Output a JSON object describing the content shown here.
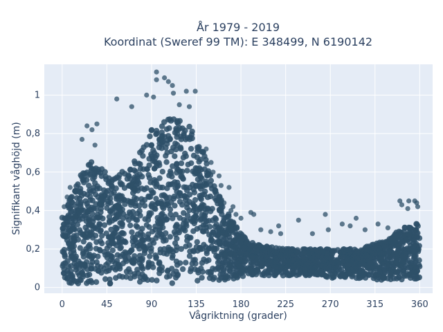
{
  "chart_data": {
    "type": "scatter",
    "title_lines": [
      "År 1979 - 2019",
      "Koordinat (Sweref 99 TM): E 348499, N 6190142"
    ],
    "xlabel": "Vågriktning (grader)",
    "ylabel": "Signifikant våghöjd (m)",
    "xlim": [
      -18,
      373
    ],
    "ylim": [
      -0.03,
      1.16
    ],
    "xticks": [
      0,
      45,
      90,
      135,
      180,
      225,
      270,
      315,
      360
    ],
    "xtick_labels": [
      "0",
      "45",
      "90",
      "135",
      "180",
      "225",
      "270",
      "315",
      "360"
    ],
    "yticks": [
      0,
      0.2,
      0.4,
      0.6,
      0.8,
      1
    ],
    "ytick_labels": [
      "0",
      "0,2",
      "0,4",
      "0,6",
      "0,8",
      "1"
    ],
    "grid": true,
    "legend": "none",
    "colors": {
      "marker": "#2e5068",
      "plot_bg": "#e5ecf6",
      "grid": "#ffffff",
      "text": "#2a3f5f"
    },
    "envelope": {
      "x": [
        0,
        10,
        20,
        30,
        40,
        50,
        60,
        70,
        80,
        90,
        100,
        110,
        120,
        130,
        140,
        150,
        160,
        170,
        180,
        190,
        200,
        210,
        220,
        230,
        240,
        250,
        260,
        270,
        280,
        290,
        300,
        310,
        320,
        330,
        340,
        350,
        360
      ],
      "lower": [
        0.03,
        0.02,
        0.02,
        0.02,
        0.02,
        0.02,
        0.02,
        0.02,
        0.02,
        0.02,
        0.02,
        0.02,
        0.02,
        0.02,
        0.02,
        0.02,
        0.03,
        0.04,
        0.05,
        0.06,
        0.06,
        0.06,
        0.06,
        0.06,
        0.06,
        0.06,
        0.06,
        0.05,
        0.05,
        0.05,
        0.04,
        0.04,
        0.04,
        0.04,
        0.04,
        0.04,
        0.04
      ],
      "upper": [
        0.38,
        0.48,
        0.6,
        0.66,
        0.62,
        0.56,
        0.6,
        0.64,
        0.72,
        0.82,
        0.86,
        0.9,
        0.88,
        0.84,
        0.74,
        0.6,
        0.46,
        0.36,
        0.28,
        0.24,
        0.22,
        0.21,
        0.21,
        0.2,
        0.2,
        0.2,
        0.2,
        0.2,
        0.2,
        0.2,
        0.2,
        0.22,
        0.24,
        0.26,
        0.3,
        0.33,
        0.35
      ]
    },
    "outliers": [
      [
        95,
        1.12
      ],
      [
        103,
        1.09
      ],
      [
        95,
        1.08
      ],
      [
        107,
        1.07
      ],
      [
        111,
        1.05
      ],
      [
        125,
        1.02
      ],
      [
        134,
        1.02
      ],
      [
        112,
        1.01
      ],
      [
        92,
        0.99
      ],
      [
        55,
        0.98
      ],
      [
        85,
        1.0
      ],
      [
        70,
        0.94
      ],
      [
        118,
        0.95
      ],
      [
        128,
        0.94
      ],
      [
        25,
        0.84
      ],
      [
        30,
        0.82
      ],
      [
        35,
        0.85
      ],
      [
        20,
        0.77
      ],
      [
        33,
        0.74
      ],
      [
        145,
        0.72
      ],
      [
        150,
        0.65
      ],
      [
        152,
        0.6
      ],
      [
        158,
        0.58
      ],
      [
        160,
        0.53
      ],
      [
        168,
        0.52
      ],
      [
        163,
        0.44
      ],
      [
        170,
        0.4
      ],
      [
        175,
        0.38
      ],
      [
        172,
        0.42
      ],
      [
        180,
        0.36
      ],
      [
        190,
        0.39
      ],
      [
        193,
        0.38
      ],
      [
        200,
        0.3
      ],
      [
        210,
        0.29
      ],
      [
        218,
        0.32
      ],
      [
        220,
        0.28
      ],
      [
        238,
        0.35
      ],
      [
        252,
        0.28
      ],
      [
        265,
        0.38
      ],
      [
        268,
        0.3
      ],
      [
        282,
        0.33
      ],
      [
        290,
        0.32
      ],
      [
        296,
        0.36
      ],
      [
        305,
        0.3
      ],
      [
        318,
        0.33
      ],
      [
        328,
        0.31
      ],
      [
        340,
        0.45
      ],
      [
        342,
        0.43
      ],
      [
        349,
        0.45
      ],
      [
        348,
        0.41
      ],
      [
        355,
        0.45
      ],
      [
        357,
        0.44
      ],
      [
        358,
        0.42
      ],
      [
        2,
        0.42
      ],
      [
        5,
        0.47
      ],
      [
        8,
        0.52
      ]
    ]
  }
}
